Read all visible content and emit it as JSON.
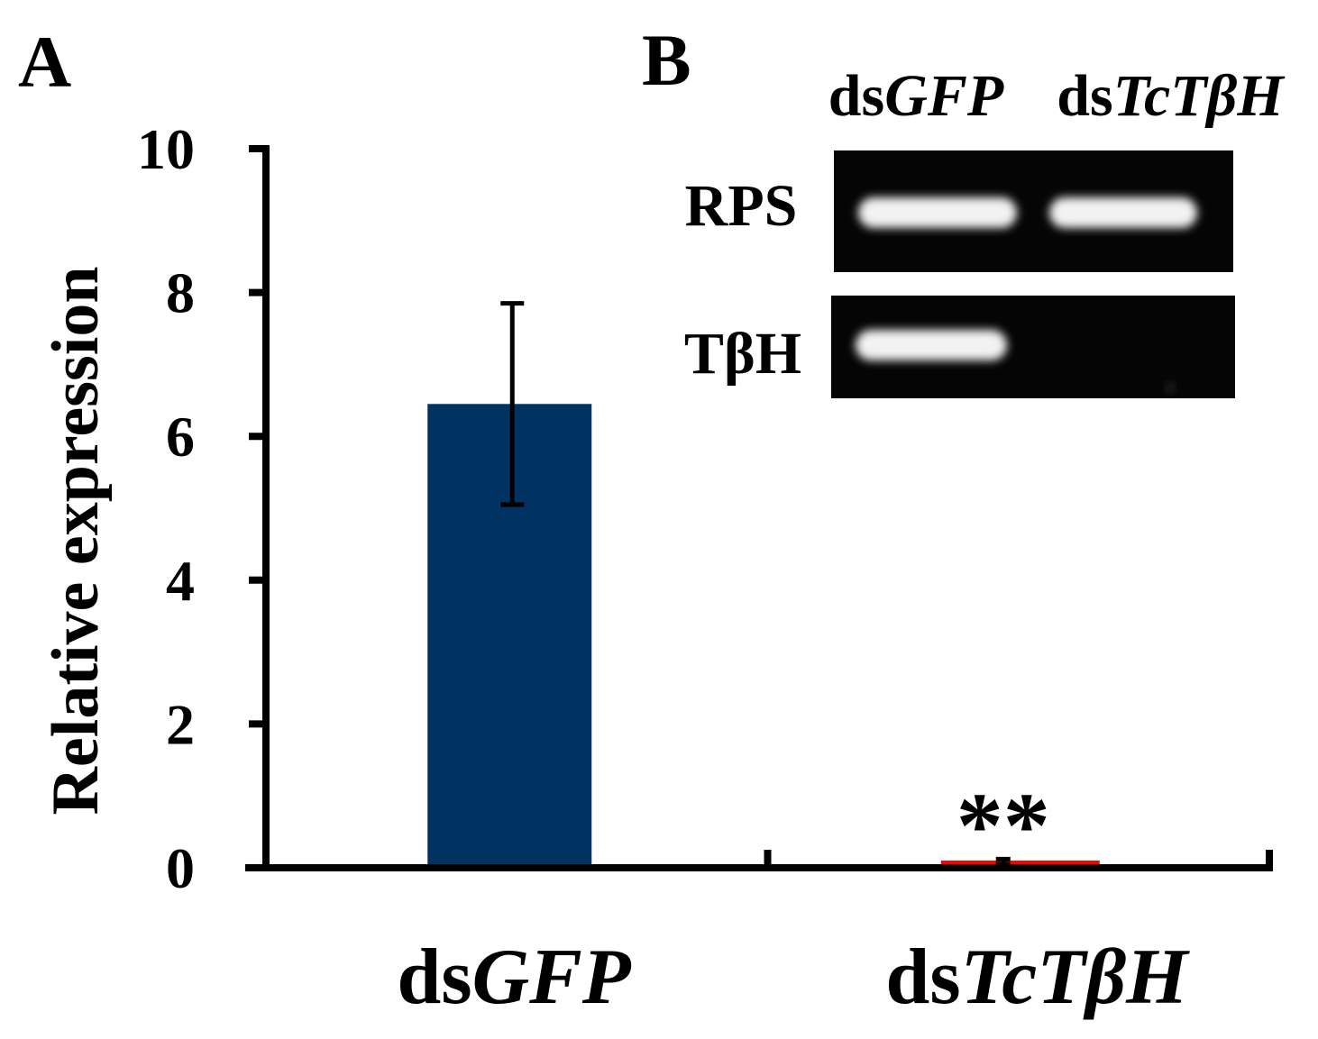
{
  "panels": {
    "a_label": "A",
    "b_label": "B"
  },
  "chart_data": {
    "type": "bar",
    "categories": [
      {
        "prefix": "ds",
        "gene": "GFP"
      },
      {
        "prefix": "ds",
        "gene": "TcTβH"
      }
    ],
    "values": [
      6.45,
      0.08
    ],
    "errors": [
      1.4,
      0.04
    ],
    "bar_colors": [
      "#003262",
      "#ff0000"
    ],
    "annotations": [
      "",
      "**"
    ],
    "ylabel": "Relative expression",
    "xlabel": "",
    "ylim": [
      0,
      10
    ],
    "yticks": [
      0,
      2,
      4,
      6,
      8,
      10
    ],
    "grid": false
  },
  "gel": {
    "lanes": [
      {
        "prefix": "ds",
        "gene": "GFP"
      },
      {
        "prefix": "ds",
        "gene": "TcTβH"
      }
    ],
    "rows": [
      {
        "label": "RPS",
        "bands": [
          1,
          1
        ]
      },
      {
        "label": "TβH",
        "bands": [
          1,
          0
        ]
      }
    ]
  }
}
